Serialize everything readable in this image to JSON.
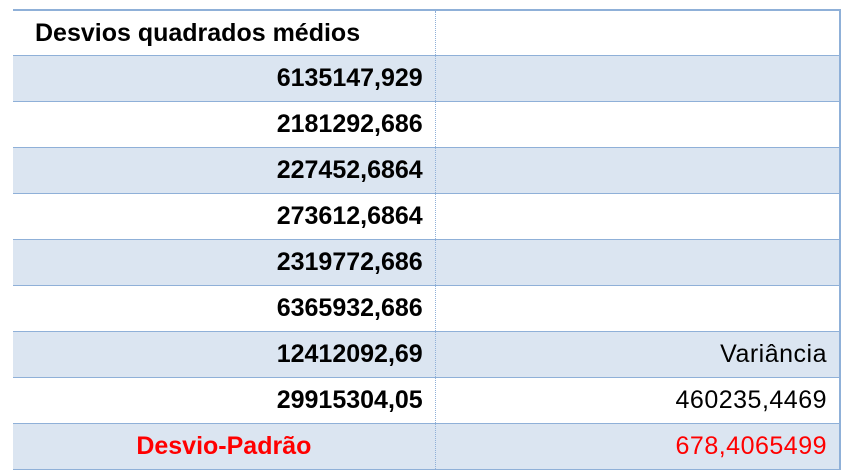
{
  "table": {
    "header": "Desvios quadrados médios",
    "rows": [
      {
        "left": "6135147,929",
        "right": ""
      },
      {
        "left": "2181292,686",
        "right": ""
      },
      {
        "left": "227452,6864",
        "right": ""
      },
      {
        "left": "273612,6864",
        "right": ""
      },
      {
        "left": "2319772,686",
        "right": ""
      },
      {
        "left": "6365932,686",
        "right": ""
      },
      {
        "left": "12412092,69",
        "right": "Variância"
      },
      {
        "left": "29915304,05",
        "right": "460235,4469"
      }
    ],
    "footer": {
      "left": "Desvio-Padrão",
      "right": "678,4065499"
    }
  },
  "colors": {
    "accent_red": "#ff0000",
    "band": "#dbe5f1",
    "border": "#8fb0d8"
  }
}
